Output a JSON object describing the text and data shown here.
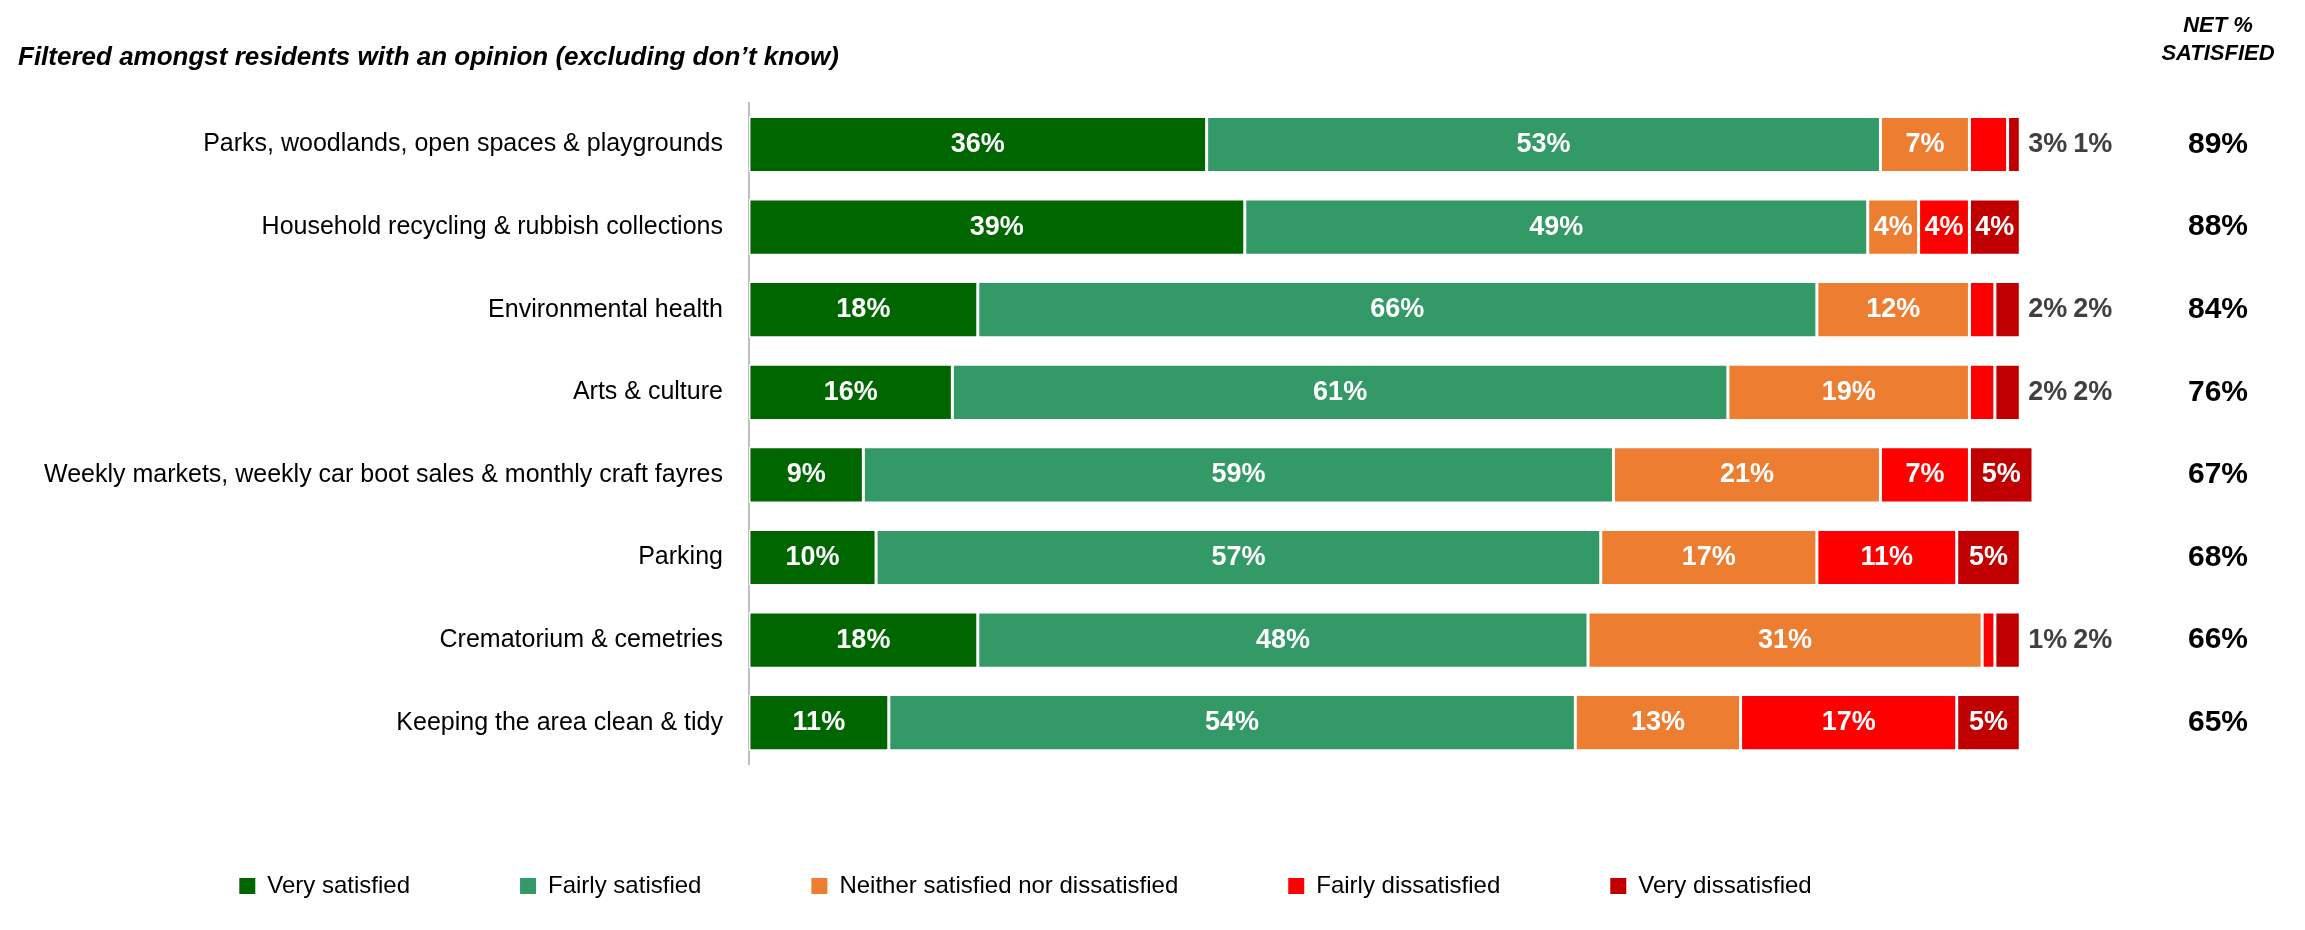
{
  "chart_data": {
    "type": "bar",
    "orientation": "horizontal",
    "stacked": true,
    "title": "Filtered amongst residents with an opinion (excluding don’t know)",
    "categories": [
      "Parks, woodlands, open spaces & playgrounds",
      "Household recycling & rubbish collections",
      "Environmental health",
      "Arts & culture",
      "Weekly markets, weekly car boot sales & monthly craft fayres",
      "Parking",
      "Crematorium & cemetries",
      "Keeping the area clean & tidy"
    ],
    "series": [
      {
        "name": "Very satisfied",
        "color": "#006600",
        "values": [
          36,
          39,
          18,
          16,
          9,
          10,
          18,
          11
        ],
        "value_labels": [
          "36%",
          "39%",
          "18%",
          "16%",
          "9%",
          "10%",
          "18%",
          "11%"
        ]
      },
      {
        "name": "Fairly satisfied",
        "color": "#339966",
        "values": [
          53,
          49,
          66,
          61,
          59,
          57,
          48,
          54
        ],
        "value_labels": [
          "53%",
          "49%",
          "66%",
          "61%",
          "59%",
          "57%",
          "48%",
          "54%"
        ]
      },
      {
        "name": "Neither satisfied nor dissatisfied",
        "color": "#ed7d31",
        "values": [
          7,
          4,
          12,
          19,
          21,
          17,
          31,
          13
        ],
        "value_labels": [
          "7%",
          "4%",
          "12%",
          "19%",
          "21%",
          "17%",
          "31%",
          "13%"
        ]
      },
      {
        "name": "Fairly dissatisfied",
        "color": "#ff0000",
        "values": [
          3,
          4,
          2,
          2,
          7,
          11,
          1,
          17
        ],
        "value_labels": [
          "3%",
          "4%",
          "2%",
          "2%",
          "7%",
          "11%",
          "1%",
          "17%"
        ]
      },
      {
        "name": "Very dissatisfied",
        "color": "#c00000",
        "values": [
          1,
          4,
          2,
          2,
          5,
          5,
          2,
          5
        ],
        "value_labels": [
          "1%",
          "4%",
          "2%",
          "2%",
          "5%",
          "5%",
          "2%",
          "5%"
        ]
      }
    ],
    "annotations": [
      "NET % SATISFIED",
      "89%",
      "88%",
      "84%",
      "76%",
      "67%",
      "68%",
      "66%",
      "65%"
    ],
    "legend": "bottom",
    "grid": false
  }
}
